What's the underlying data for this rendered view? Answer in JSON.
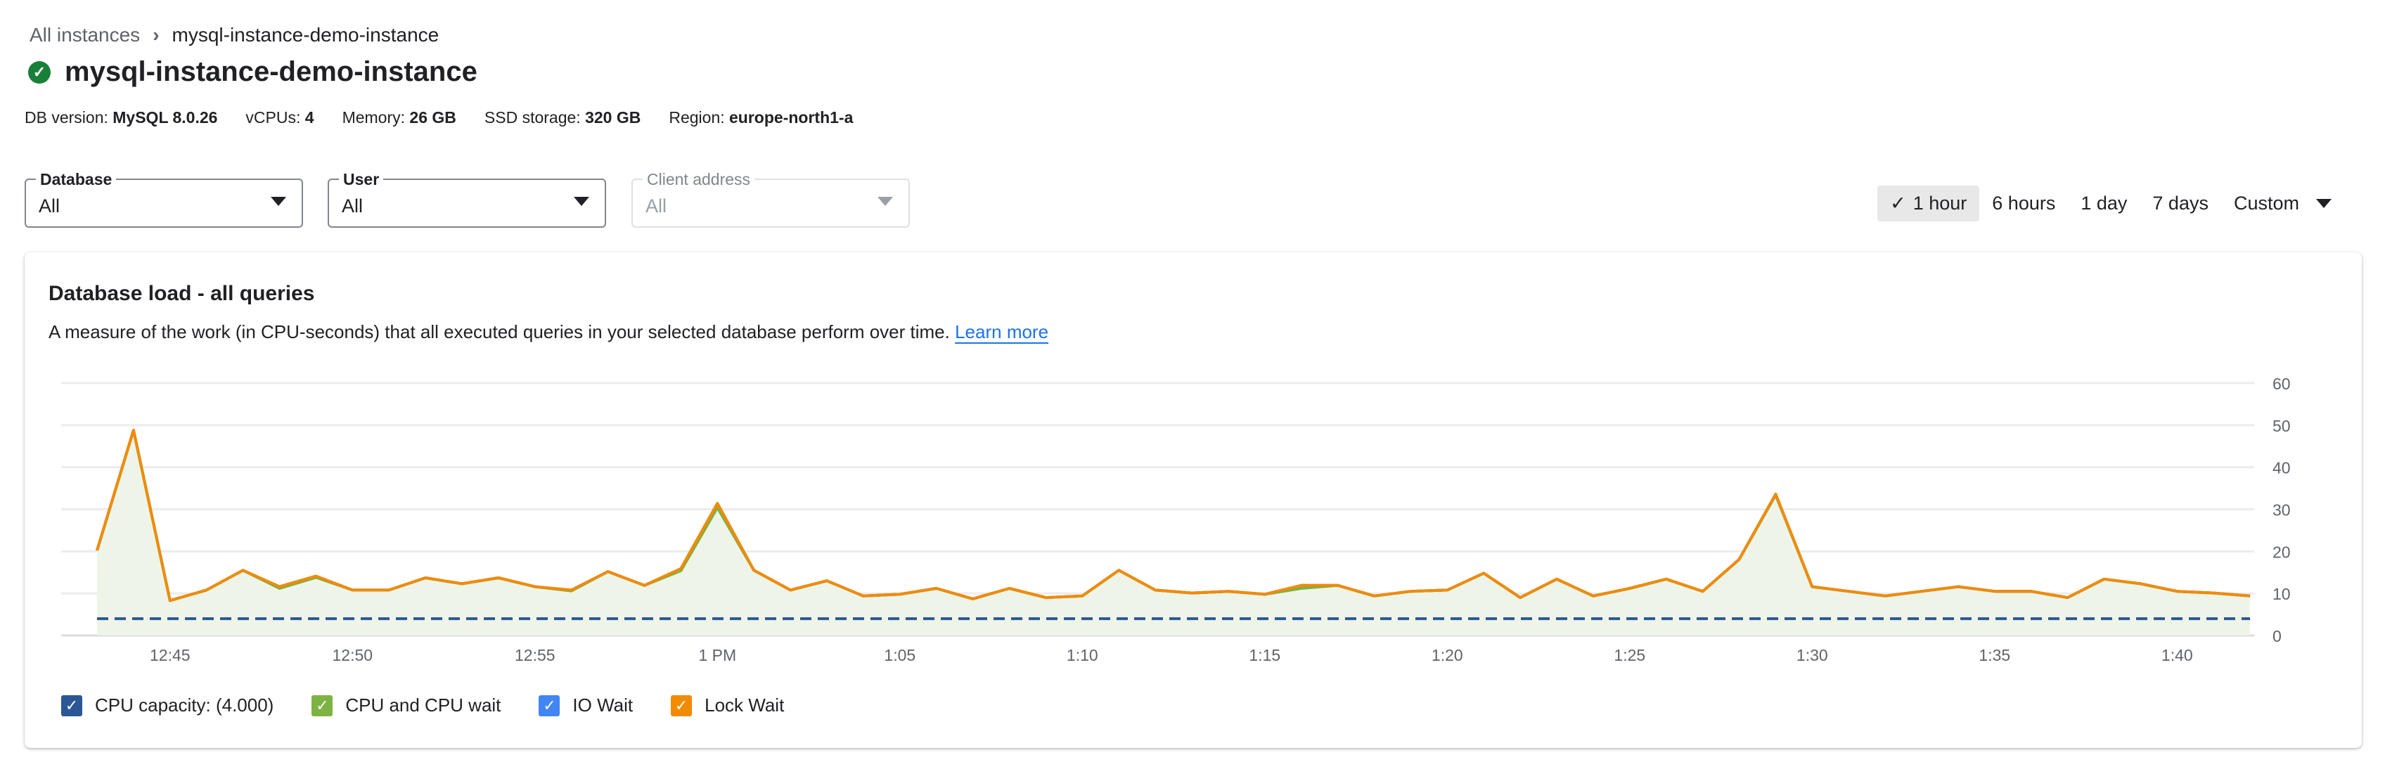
{
  "breadcrumb": {
    "parent": "All instances",
    "current": "mysql-instance-demo-instance"
  },
  "instance": {
    "name": "mysql-instance-demo-instance",
    "status": "running"
  },
  "info": [
    {
      "label": "DB version:",
      "value": "MySQL 8.0.26"
    },
    {
      "label": "vCPUs:",
      "value": "4"
    },
    {
      "label": "Memory:",
      "value": "26 GB"
    },
    {
      "label": "SSD storage:",
      "value": "320 GB"
    },
    {
      "label": "Region:",
      "value": "europe-north1-a"
    }
  ],
  "filters": [
    {
      "label": "Database",
      "value": "All",
      "disabled": false
    },
    {
      "label": "User",
      "value": "All",
      "disabled": false
    },
    {
      "label": "Client address",
      "value": "All",
      "disabled": true
    }
  ],
  "time_range": {
    "options": [
      "1 hour",
      "6 hours",
      "1 day",
      "7 days"
    ],
    "selected": "1 hour",
    "custom": "Custom"
  },
  "card": {
    "title": "Database load - all queries",
    "description": "A measure of the work (in CPU-seconds) that all executed queries in your selected database perform over time.",
    "learn_more": "Learn more"
  },
  "colors": {
    "cpu_capacity": "#2b5797",
    "cpu": "#7cb342",
    "io": "#4285f4",
    "lock": "#f28b00",
    "fill": "#eef5e8"
  },
  "chart_data": {
    "type": "area",
    "stacked": true,
    "x_start": "12:43",
    "x_interval_minutes": 1,
    "x_ticks": [
      "12:45",
      "12:50",
      "12:55",
      "1 PM",
      "1:05",
      "1:10",
      "1:15",
      "1:20",
      "1:25",
      "1:30",
      "1:35",
      "1:40"
    ],
    "y_ticks": [
      0,
      10,
      20,
      30,
      40,
      50,
      60
    ],
    "ylim": [
      0,
      60
    ],
    "grid": true,
    "legend_position": "bottom",
    "cpu_capacity": 4,
    "series": [
      {
        "name": "CPU and CPU wait",
        "values": [
          20.2,
          48.8,
          8.3,
          10.8,
          15.5,
          11.2,
          13.8,
          10.8,
          10.8,
          13.7,
          12.3,
          13.7,
          11.6,
          10.6,
          15.2,
          11.9,
          15.4,
          30.4,
          15.5,
          10.8,
          13,
          9.4,
          9.8,
          11.2,
          8.7,
          11.2,
          9,
          9.4,
          15.5,
          10.8,
          10.1,
          10.5,
          9.8,
          11.2,
          11.9,
          9.4,
          10.5,
          10.8,
          14.8,
          9,
          13.4,
          9.4,
          11.2,
          13.4,
          10.5,
          18.1,
          33.4,
          11.6,
          10.5,
          9.4,
          10.5,
          11.6,
          10.5,
          10.5,
          9,
          13.4,
          12.3,
          10.5,
          10.1,
          9.4
        ]
      },
      {
        "name": "IO Wait",
        "values": [
          0,
          0,
          0,
          0,
          0,
          0.4,
          0.3,
          0,
          0,
          0,
          0,
          0,
          0,
          0.2,
          0,
          0,
          0.5,
          1.0,
          0,
          0,
          0,
          0,
          0,
          0,
          0,
          0,
          0,
          0,
          0,
          0,
          0,
          0,
          0,
          0.7,
          0,
          0,
          0,
          0,
          0,
          0,
          0,
          0,
          0,
          0,
          0,
          0,
          0.2,
          0,
          0,
          0,
          0,
          0,
          0,
          0,
          0,
          0,
          0,
          0,
          0,
          0
        ]
      },
      {
        "name": "Lock Wait",
        "values": [
          0,
          0,
          0,
          0,
          0,
          0,
          0,
          0,
          0,
          0,
          0,
          0,
          0,
          0,
          0,
          0,
          0,
          0,
          0,
          0,
          0,
          0,
          0,
          0,
          0,
          0,
          0,
          0,
          0,
          0,
          0,
          0,
          0,
          0,
          0,
          0,
          0,
          0,
          0,
          0,
          0,
          0,
          0,
          0,
          0,
          0,
          0,
          0,
          0,
          0,
          0,
          0,
          0,
          0,
          0,
          0,
          0,
          0,
          0,
          0
        ]
      }
    ],
    "legend": [
      {
        "label": "CPU capacity: (4.000)",
        "color": "#2b5797",
        "checked": true
      },
      {
        "label": "CPU and CPU wait",
        "color": "#7cb342",
        "checked": true
      },
      {
        "label": "IO Wait",
        "color": "#4285f4",
        "checked": true
      },
      {
        "label": "Lock Wait",
        "color": "#f28b00",
        "checked": true
      }
    ]
  }
}
